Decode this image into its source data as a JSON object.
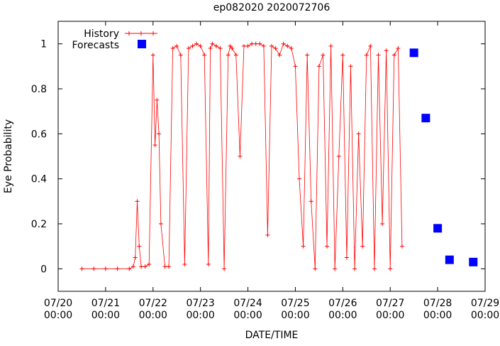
{
  "chart_data": {
    "type": "scatter",
    "title": "ep082020 2020072706",
    "xlabel": "DATE/TIME",
    "ylabel": "Eye Probability",
    "xlim": [
      "2020-07-20 00:00",
      "2020-07-29 00:00"
    ],
    "ylim": [
      -0.1,
      1.1
    ],
    "xtick_labels": [
      [
        "07/20",
        "00:00"
      ],
      [
        "07/21",
        "00:00"
      ],
      [
        "07/22",
        "00:00"
      ],
      [
        "07/23",
        "00:00"
      ],
      [
        "07/24",
        "00:00"
      ],
      [
        "07/25",
        "00:00"
      ],
      [
        "07/26",
        "00:00"
      ],
      [
        "07/27",
        "00:00"
      ],
      [
        "07/28",
        "00:00"
      ],
      [
        "07/29",
        "00:00"
      ]
    ],
    "ytick_labels": [
      "0",
      "0.2",
      "0.4",
      "0.6",
      "0.8",
      "1"
    ],
    "ytick_values": [
      0,
      0.2,
      0.4,
      0.6,
      0.8,
      1
    ],
    "legend": {
      "placement": "top-left"
    },
    "colors": {
      "history": "#ff0000",
      "forecasts": "#0000ff"
    },
    "series": [
      {
        "name": "History",
        "style": "line-with-plus-markers",
        "x": [
          "2020-07-20 12:00",
          "2020-07-20 18:00",
          "2020-07-21 00:00",
          "2020-07-21 06:00",
          "2020-07-21 12:00",
          "2020-07-21 14:00",
          "2020-07-21 15:00",
          "2020-07-21 16:00",
          "2020-07-21 17:00",
          "2020-07-21 18:00",
          "2020-07-21 20:00",
          "2020-07-21 22:00",
          "2020-07-22 00:00",
          "2020-07-22 01:00",
          "2020-07-22 02:00",
          "2020-07-22 03:00",
          "2020-07-22 04:00",
          "2020-07-22 06:00",
          "2020-07-22 08:00",
          "2020-07-22 10:00",
          "2020-07-22 12:00",
          "2020-07-22 14:00",
          "2020-07-22 16:00",
          "2020-07-22 18:00",
          "2020-07-22 20:00",
          "2020-07-22 22:00",
          "2020-07-23 00:00",
          "2020-07-23 02:00",
          "2020-07-23 04:00",
          "2020-07-23 05:00",
          "2020-07-23 06:00",
          "2020-07-23 08:00",
          "2020-07-23 10:00",
          "2020-07-23 12:00",
          "2020-07-23 14:00",
          "2020-07-23 15:00",
          "2020-07-23 16:00",
          "2020-07-23 18:00",
          "2020-07-23 20:00",
          "2020-07-23 22:00",
          "2020-07-24 00:00",
          "2020-07-24 02:00",
          "2020-07-24 04:00",
          "2020-07-24 06:00",
          "2020-07-24 08:00",
          "2020-07-24 10:00",
          "2020-07-24 12:00",
          "2020-07-24 14:00",
          "2020-07-24 16:00",
          "2020-07-24 18:00",
          "2020-07-24 20:00",
          "2020-07-24 22:00",
          "2020-07-25 00:00",
          "2020-07-25 02:00",
          "2020-07-25 04:00",
          "2020-07-25 06:00",
          "2020-07-25 08:00",
          "2020-07-25 10:00",
          "2020-07-25 12:00",
          "2020-07-25 14:00",
          "2020-07-25 16:00",
          "2020-07-25 18:00",
          "2020-07-25 20:00",
          "2020-07-25 22:00",
          "2020-07-26 00:00",
          "2020-07-26 02:00",
          "2020-07-26 04:00",
          "2020-07-26 06:00",
          "2020-07-26 08:00",
          "2020-07-26 10:00",
          "2020-07-26 12:00",
          "2020-07-26 14:00",
          "2020-07-26 16:00",
          "2020-07-26 18:00",
          "2020-07-26 20:00",
          "2020-07-26 22:00",
          "2020-07-27 00:00",
          "2020-07-27 02:00",
          "2020-07-27 04:00",
          "2020-07-27 06:00"
        ],
        "y": [
          0.0,
          0.0,
          0.0,
          0.0,
          0.0,
          0.01,
          0.05,
          0.3,
          0.1,
          0.01,
          0.01,
          0.02,
          0.95,
          0.55,
          0.75,
          0.6,
          0.2,
          0.01,
          0.01,
          0.98,
          0.99,
          0.95,
          0.02,
          0.98,
          0.99,
          1.0,
          0.99,
          0.95,
          0.02,
          0.98,
          1.0,
          0.99,
          0.98,
          0.0,
          0.95,
          0.99,
          0.98,
          0.95,
          0.5,
          0.99,
          0.99,
          1.0,
          1.0,
          1.0,
          0.99,
          0.15,
          0.99,
          0.98,
          0.95,
          1.0,
          0.99,
          0.98,
          0.9,
          0.4,
          0.1,
          0.95,
          0.3,
          0.0,
          0.9,
          0.95,
          0.1,
          0.99,
          0.0,
          0.5,
          0.95,
          0.05,
          0.9,
          0.0,
          0.6,
          0.1,
          0.95,
          0.99,
          0.0,
          0.95,
          0.2,
          0.97,
          0.0,
          0.95,
          0.98,
          0.1
        ]
      },
      {
        "name": "Forecasts",
        "style": "square-markers",
        "x": [
          "2020-07-27 12:00",
          "2020-07-27 18:00",
          "2020-07-28 00:00",
          "2020-07-28 06:00",
          "2020-07-28 18:00"
        ],
        "y": [
          0.96,
          0.67,
          0.18,
          0.04,
          0.03
        ]
      }
    ]
  }
}
